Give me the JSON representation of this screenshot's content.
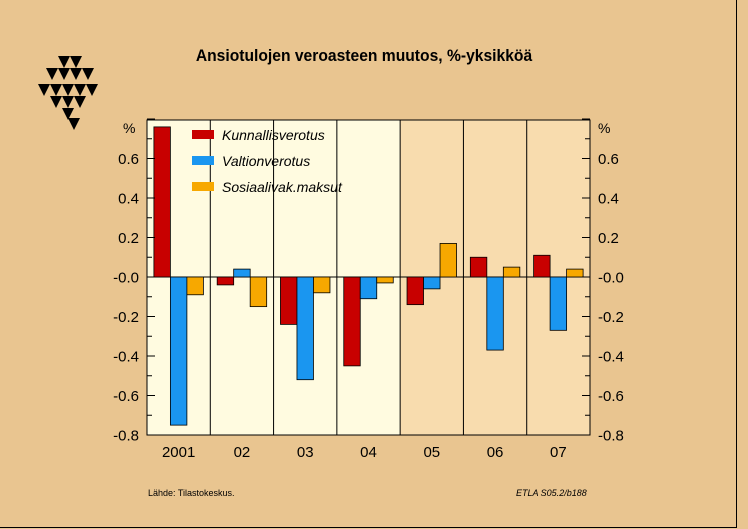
{
  "chart_data": {
    "type": "bar",
    "title": "Ansiotulojen veroasteen muutos, %-yksikköä",
    "unit_left": "%",
    "unit_right": "%",
    "categories": [
      "2001",
      "02",
      "03",
      "04",
      "05",
      "06",
      "07"
    ],
    "series": [
      {
        "name": "Kunnallisverotus",
        "color": "#c80000",
        "values": [
          0.76,
          -0.04,
          -0.24,
          -0.45,
          -0.14,
          0.1,
          0.11
        ]
      },
      {
        "name": "Valtionverotus",
        "color": "#1a96f0",
        "values": [
          -0.75,
          0.04,
          -0.52,
          -0.11,
          -0.06,
          -0.37,
          -0.27
        ]
      },
      {
        "name": "Sosiaalivak.maksut",
        "color": "#f7a800",
        "values": [
          -0.09,
          -0.15,
          -0.08,
          -0.03,
          0.17,
          0.05,
          0.04
        ]
      }
    ],
    "yticks": [
      {
        "v": 0.6,
        "label": "0.6"
      },
      {
        "v": 0.4,
        "label": "0.4"
      },
      {
        "v": 0.2,
        "label": "0.2"
      },
      {
        "v": 0.0,
        "label": "-0.0"
      },
      {
        "v": -0.2,
        "label": "-0.2"
      },
      {
        "v": -0.4,
        "label": "-0.4"
      },
      {
        "v": -0.6,
        "label": "-0.6"
      },
      {
        "v": -0.8,
        "label": "-0.8"
      }
    ],
    "ylim": [
      -0.8,
      0.8
    ],
    "shaded_from_category": 4,
    "background_colors": {
      "actual": "#fffbe0",
      "forecast": "#f8dcae"
    }
  },
  "footer": {
    "source": "Lähde:   Tilastokeskus.",
    "code": "ETLA S05.2/b188"
  }
}
